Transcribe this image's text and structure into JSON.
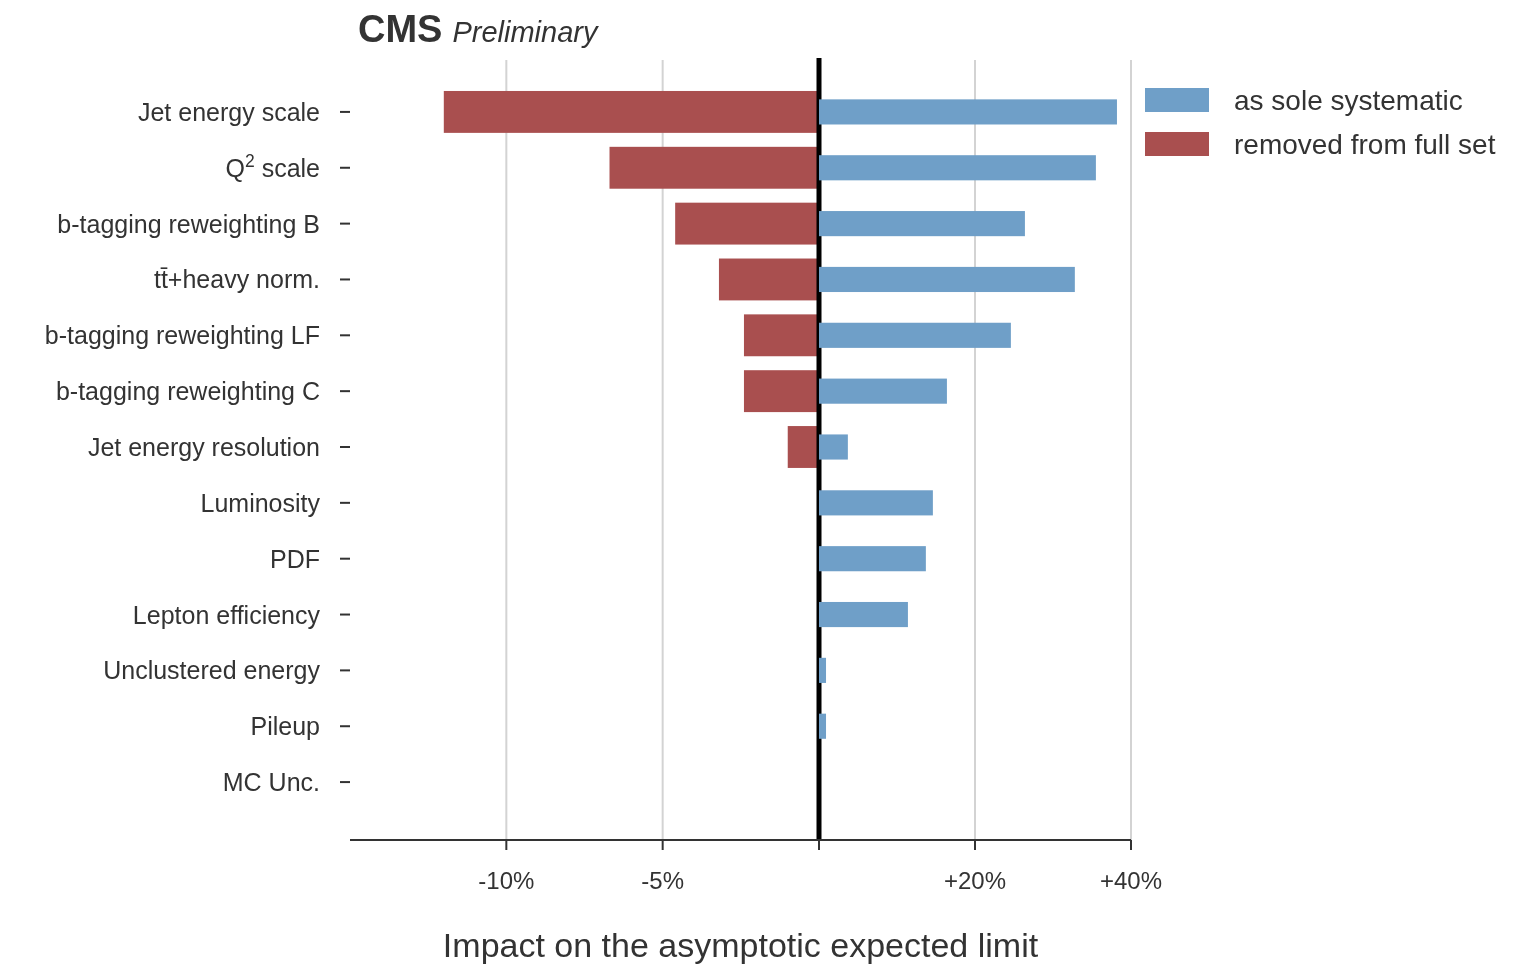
{
  "chart_data": [
    {
      "type": "bar",
      "orientation": "horizontal",
      "title": "CMS",
      "subtitle": "Preliminary",
      "xlabel": "Impact on the asymptotic expected limit",
      "categories": [
        "Jet energy scale",
        "Q$^{2}$ scale",
        "b-tagging reweighting B",
        "tt̄+heavy norm.",
        "b-tagging reweighting LF",
        "b-tagging reweighting C",
        "Jet energy resolution",
        "Luminosity",
        "PDF",
        "Lepton efficiency",
        "Unclustered energy",
        "Pileup",
        "MC Unc."
      ],
      "series": [
        {
          "name": "removed from full set",
          "color": "#a94f4f",
          "values": [
            -12,
            -6.7,
            -4.6,
            -3.2,
            -2.4,
            -2.4,
            -1.0,
            0,
            0,
            0,
            0,
            0,
            0
          ]
        }
      ],
      "xlim": [
        -15,
        0
      ],
      "xticks": [
        {
          "value": -10,
          "label": "-10%"
        },
        {
          "value": -5,
          "label": "-5%"
        },
        {
          "value": 0,
          "label": null
        }
      ],
      "ref_lines": [
        {
          "axis": "x",
          "value": 0,
          "color": "#000000"
        }
      ],
      "grid": "x",
      "legend": "top right"
    },
    {
      "type": "bar",
      "orientation": "horizontal",
      "categories": [
        null,
        null,
        null,
        null,
        null,
        null,
        null,
        null,
        null,
        null,
        null,
        null,
        null
      ],
      "series": [
        {
          "name": "as sole systematic",
          "color": "#6f9fc8",
          "values": [
            38.2,
            35.5,
            26.4,
            32.8,
            24.6,
            16.4,
            3.7,
            14.6,
            13.7,
            11.4,
            0.9,
            0.9,
            0
          ]
        }
      ],
      "xlim": [
        0,
        40
      ],
      "xticks": [
        {
          "value": 0,
          "label": null
        },
        {
          "value": 20,
          "label": "+20%"
        },
        {
          "value": 40,
          "label": "+40%"
        }
      ],
      "grid": "x",
      "legend": "top right",
      "tick_labels": "x"
    }
  ]
}
